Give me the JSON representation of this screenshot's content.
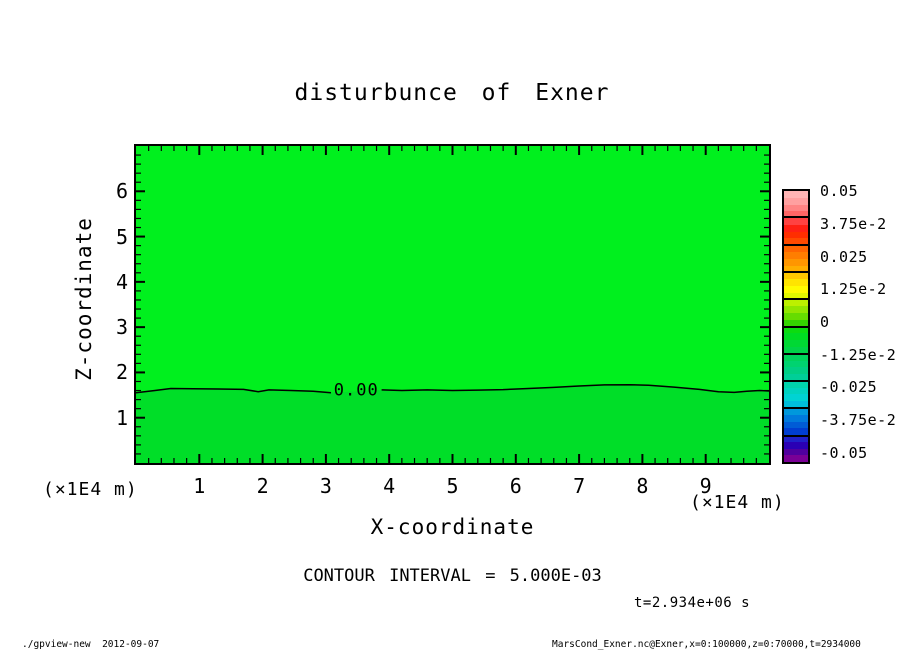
{
  "title": "disturbunce of Exner",
  "axes": {
    "x": {
      "title": "X-coordinate",
      "unit": "(×1E4 m)",
      "tick_labels": [
        "1",
        "2",
        "3",
        "4",
        "5",
        "6",
        "7",
        "8",
        "9"
      ]
    },
    "y": {
      "title": "Z-coordinate",
      "unit": "(×1E4 m)",
      "tick_labels": [
        "1",
        "2",
        "3",
        "4",
        "5",
        "6"
      ]
    }
  },
  "colorbar": {
    "labels": [
      "0.05",
      "3.75e-2",
      "0.025",
      "1.25e-2",
      "0",
      "-1.25e-2",
      "-0.025",
      "-3.75e-2",
      "-0.05"
    ],
    "colors": [
      "#FFB4B4",
      "#FFA0A0",
      "#FF8484",
      "#FF6666",
      "#FF4242",
      "#FF2014",
      "#FF2E00",
      "#FF4A00",
      "#FF6600",
      "#FF7E00",
      "#FF9600",
      "#FFAE00",
      "#FFC800",
      "#FFE400",
      "#FFFB00",
      "#E2F800",
      "#BCF000",
      "#92E600",
      "#66DC00",
      "#34D400",
      "#0CDC10",
      "#00DC22",
      "#00D834",
      "#00D348",
      "#00D35C",
      "#00D370",
      "#00CF84",
      "#00CF98",
      "#00D3AC",
      "#00D3C0",
      "#00D3D3",
      "#00BEDC",
      "#0098DC",
      "#007ADC",
      "#005CD6",
      "#003ED0",
      "#2020C8",
      "#2A00B4",
      "#50009E",
      "#7A0096"
    ]
  },
  "annotations": {
    "contour_interval": "CONTOUR INTERVAL = 5.000E-03",
    "time": "t=2.934e+06 s"
  },
  "footer": {
    "left": "./gpview-new  2012-09-07",
    "right": "MarsCond_Exner.nc@Exner,x=0:100000,z=0:70000,t=2934000"
  },
  "chart_data": {
    "type": "heatmap",
    "subtype": "filled-contour",
    "title": "disturbunce of Exner",
    "xlabel": "X-coordinate",
    "ylabel": "Z-coordinate",
    "x_unit_scale": "(×1E4 m)",
    "y_unit_scale": "(×1E4 m)",
    "xlim": [
      0,
      10
    ],
    "ylim": [
      0,
      7
    ],
    "x_major_ticks": [
      1,
      2,
      3,
      4,
      5,
      6,
      7,
      8,
      9
    ],
    "y_major_ticks": [
      1,
      2,
      3,
      4,
      5,
      6
    ],
    "minor_tick_step": 0.2,
    "contour_interval": 0.005,
    "contour_label": "0.00",
    "contour_label_x": 3.48,
    "contour_label_z": 1.62,
    "fill_above_zero": "#00F01E",
    "fill_below_zero": "#00DE28",
    "colorbar_ticks": [
      0.05,
      0.0375,
      0.025,
      0.0125,
      0,
      -0.0125,
      -0.025,
      -0.0375,
      -0.05
    ],
    "zero_contour_segments": [
      [
        [
          0,
          1.55
        ],
        [
          0.3,
          1.6
        ],
        [
          0.55,
          1.645
        ],
        [
          0.9,
          1.64
        ],
        [
          1.3,
          1.635
        ],
        [
          1.7,
          1.625
        ],
        [
          1.93,
          1.575
        ],
        [
          2.1,
          1.615
        ],
        [
          2.45,
          1.6
        ],
        [
          2.8,
          1.585
        ],
        [
          3.08,
          1.55
        ]
      ],
      [
        [
          3.88,
          1.615
        ],
        [
          4.2,
          1.6
        ],
        [
          4.6,
          1.615
        ],
        [
          5.0,
          1.6
        ],
        [
          5.4,
          1.61
        ],
        [
          5.8,
          1.62
        ],
        [
          6.2,
          1.645
        ],
        [
          6.6,
          1.67
        ],
        [
          7.0,
          1.7
        ],
        [
          7.4,
          1.725
        ],
        [
          7.8,
          1.73
        ],
        [
          8.1,
          1.715
        ],
        [
          8.5,
          1.675
        ],
        [
          8.9,
          1.625
        ],
        [
          9.2,
          1.575
        ],
        [
          9.45,
          1.56
        ],
        [
          9.65,
          1.585
        ],
        [
          9.85,
          1.6
        ],
        [
          10,
          1.59
        ]
      ]
    ]
  }
}
